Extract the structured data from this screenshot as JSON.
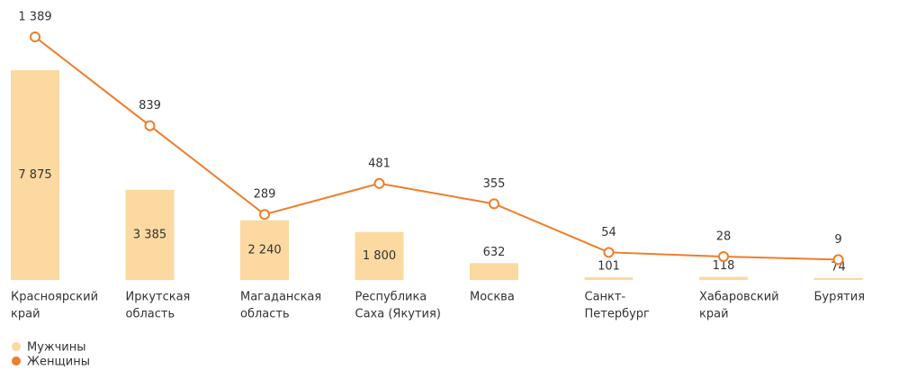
{
  "chart_data": {
    "type": "combo",
    "categories": [
      [
        "Красноярский",
        "край"
      ],
      [
        "Иркутская",
        "область"
      ],
      [
        "Магаданская",
        "область"
      ],
      [
        "Республика",
        "Саха (Якутия)"
      ],
      [
        "Москва"
      ],
      [
        "Санкт-",
        "Петербург"
      ],
      [
        "Хабаровский",
        "край"
      ],
      [
        "Бурятия"
      ]
    ],
    "series": [
      {
        "name": "Мужчины",
        "type": "bar",
        "color": "#fcd9a0",
        "values": [
          7875,
          3385,
          2240,
          1800,
          632,
          101,
          118,
          74
        ],
        "value_labels": [
          "7 875",
          "3 385",
          "2 240",
          "1 800",
          "632",
          "101",
          "118",
          "74"
        ]
      },
      {
        "name": "Женщины",
        "type": "line",
        "axis": "y2",
        "color": "#ef7d2a",
        "values": [
          1389,
          839,
          289,
          481,
          355,
          54,
          28,
          9
        ],
        "value_labels": [
          "1 389",
          "839",
          "289",
          "481",
          "355",
          "54",
          "28",
          "9"
        ]
      }
    ]
  }
}
